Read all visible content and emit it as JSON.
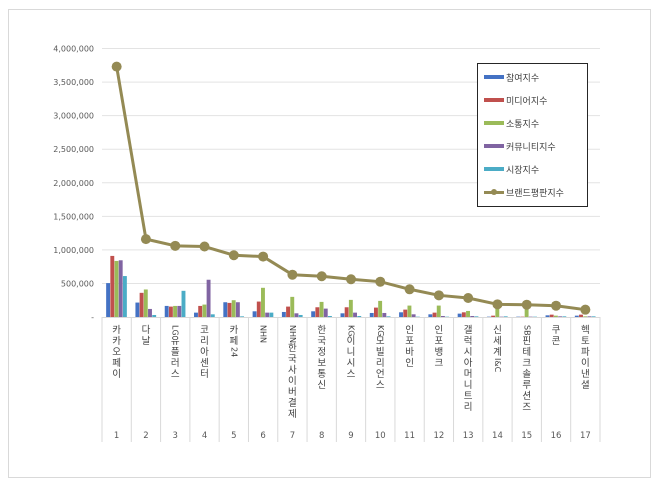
{
  "chart_data": {
    "type": "bar+line",
    "title": "",
    "xlabel": "",
    "ylabel": "",
    "ylim": [
      0,
      4000000
    ],
    "yticks": [
      "-",
      "500,000",
      "1,000,000",
      "1,500,000",
      "2,000,000",
      "2,500,000",
      "3,000,000",
      "3,500,000",
      "4,000,000"
    ],
    "grid": true,
    "legend_position": "upper-right-inside",
    "categories": [
      "카카오페이",
      "다날",
      "LG유플러스",
      "코리아센터",
      "카페24",
      "NHN",
      "NHN한국사이버결제",
      "한국정보통신",
      "KG이니시스",
      "KG모빌리언스",
      "인포바인",
      "인포뱅크",
      "갤럭시아머니트리",
      "신세계I&C",
      "SB핀테크솔루션즈",
      "쿠콘",
      "헥토파이낸셜"
    ],
    "ranks": [
      "1",
      "2",
      "3",
      "4",
      "5",
      "6",
      "7",
      "8",
      "9",
      "10",
      "11",
      "12",
      "13",
      "14",
      "15",
      "16",
      "17"
    ],
    "series": [
      {
        "name": "참여지수",
        "type": "bar",
        "color": "#4472c4",
        "values": [
          505000,
          215000,
          165000,
          65000,
          220000,
          85000,
          75000,
          85000,
          55000,
          60000,
          70000,
          40000,
          50000,
          5000,
          5000,
          25000,
          20000
        ]
      },
      {
        "name": "미디어지수",
        "type": "bar",
        "color": "#c0504d",
        "values": [
          910000,
          360000,
          155000,
          165000,
          210000,
          230000,
          155000,
          145000,
          145000,
          140000,
          110000,
          65000,
          70000,
          20000,
          5000,
          35000,
          35000
        ]
      },
      {
        "name": "소통지수",
        "type": "bar",
        "color": "#9bbb59",
        "values": [
          835000,
          410000,
          165000,
          185000,
          250000,
          435000,
          300000,
          225000,
          255000,
          240000,
          170000,
          170000,
          90000,
          150000,
          150000,
          20000,
          10000
        ]
      },
      {
        "name": "커뮤니티지수",
        "type": "bar",
        "color": "#8064a2",
        "values": [
          845000,
          120000,
          165000,
          555000,
          220000,
          65000,
          55000,
          125000,
          65000,
          60000,
          40000,
          15000,
          15000,
          5000,
          5000,
          10000,
          10000
        ]
      },
      {
        "name": "시장지수",
        "type": "bar",
        "color": "#4bacc6",
        "values": [
          610000,
          30000,
          390000,
          40000,
          10000,
          65000,
          30000,
          15000,
          15000,
          10000,
          5000,
          5000,
          10000,
          10000,
          5000,
          10000,
          10000
        ]
      },
      {
        "name": "브랜드평판지수",
        "type": "line",
        "color": "#948a54",
        "values": [
          3730000,
          1160000,
          1060000,
          1050000,
          920000,
          900000,
          630000,
          607000,
          562000,
          526000,
          413000,
          323000,
          283000,
          189000,
          183000,
          168000,
          109000
        ]
      }
    ]
  },
  "legend": {
    "items": [
      {
        "label": "참여지수",
        "color": "#4472c4"
      },
      {
        "label": "미디어지수",
        "color": "#c0504d"
      },
      {
        "label": "소통지수",
        "color": "#9bbb59"
      },
      {
        "label": "커뮤니티지수",
        "color": "#8064a2"
      },
      {
        "label": "시장지수",
        "color": "#4bacc6"
      },
      {
        "label": "브랜드평판지수",
        "color": "#948a54"
      }
    ]
  }
}
